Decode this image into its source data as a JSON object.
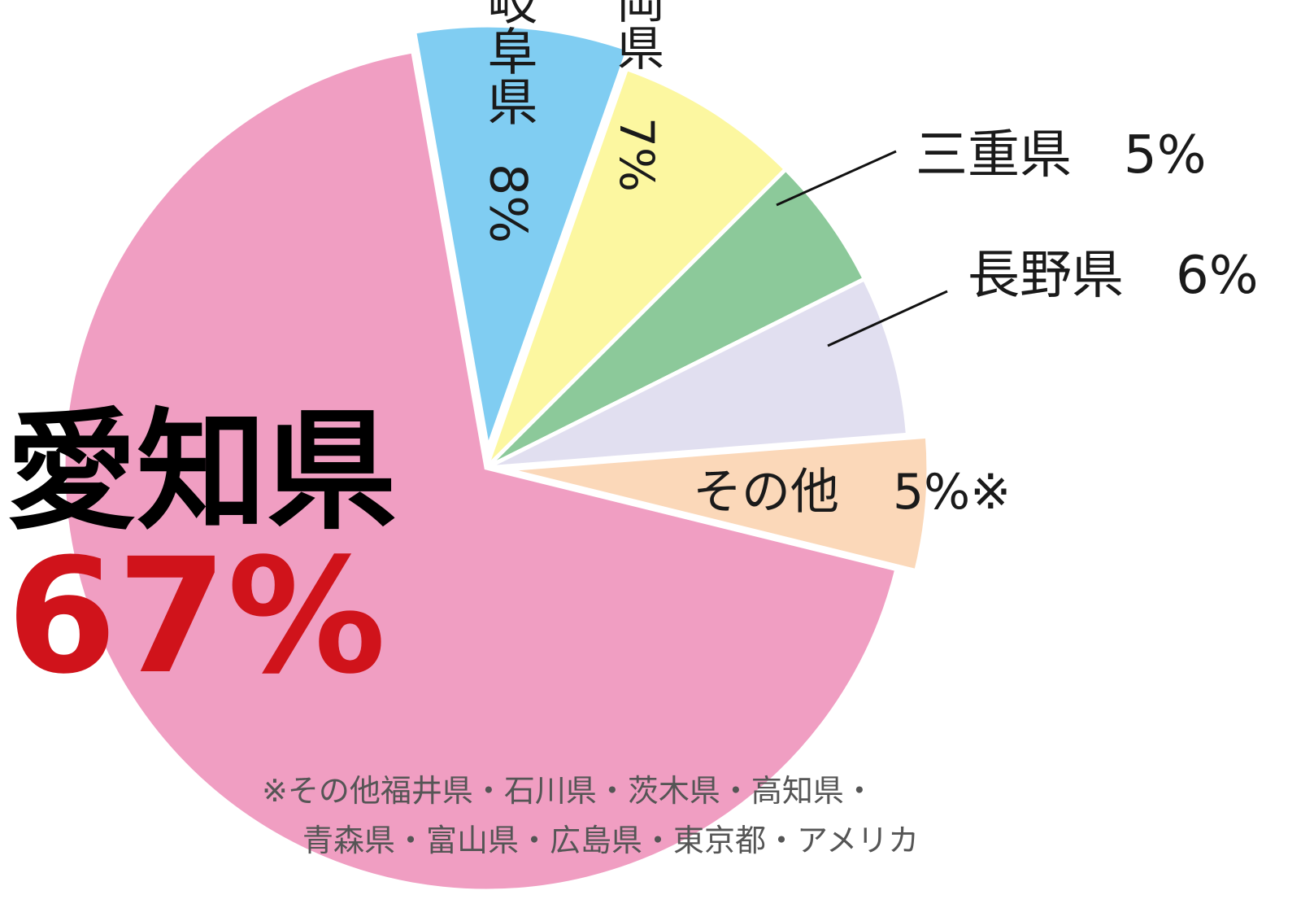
{
  "chart_data": {
    "type": "pie",
    "unit": "%",
    "slices": [
      {
        "label": "愛知県",
        "value": 67,
        "value_label": "67%",
        "color": "#F09EC2",
        "exploded": false
      },
      {
        "label": "岐阜県",
        "value": 8,
        "value_label": "8%",
        "color": "#80CDF2",
        "exploded": true
      },
      {
        "label": "静岡県",
        "value": 7,
        "value_label": "7%",
        "color": "#FCF7A0",
        "exploded": false
      },
      {
        "label": "三重県",
        "value": 5,
        "value_label": "5%",
        "color": "#8CC99A",
        "exploded": false
      },
      {
        "label": "長野県",
        "value": 6,
        "value_label": "6%",
        "color": "#E1DFF0",
        "exploded": false
      },
      {
        "label": "その他",
        "value": 5,
        "value_label": "5%※",
        "color": "#FBD8B9",
        "exploded": true
      }
    ],
    "highlight_value_color": "#D0131B",
    "footnote": [
      "※その他福井県・石川県・茨木県・高知県・",
      "青森県・富山県・広島県・東京都・アメリカ"
    ]
  }
}
